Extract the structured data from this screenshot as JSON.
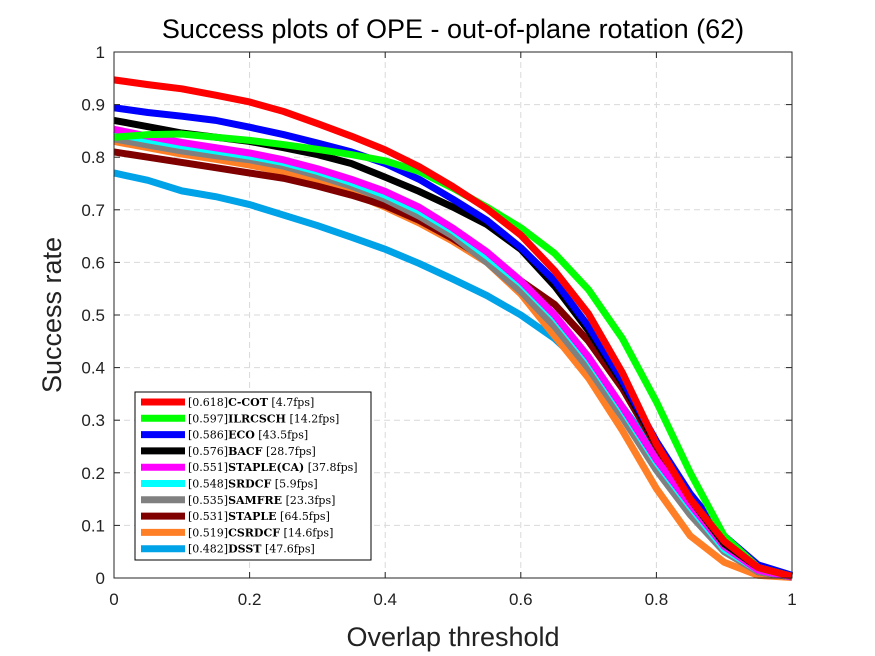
{
  "chart_data": {
    "type": "line",
    "title": "Success plots of OPE - out-of-plane rotation (62)",
    "xlabel": "Overlap threshold",
    "ylabel": "Success rate",
    "xlim": [
      0,
      1
    ],
    "ylim": [
      0,
      1
    ],
    "xticks": [
      "0",
      "0.2",
      "0.4",
      "0.6",
      "0.8",
      "1"
    ],
    "yticks": [
      "0",
      "0.1",
      "0.2",
      "0.3",
      "0.4",
      "0.5",
      "0.6",
      "0.7",
      "0.8",
      "0.9",
      "1"
    ],
    "grid": true,
    "legend_position": "bottom-left",
    "x": [
      0,
      0.05,
      0.1,
      0.15,
      0.2,
      0.25,
      0.3,
      0.35,
      0.4,
      0.45,
      0.5,
      0.55,
      0.6,
      0.65,
      0.7,
      0.75,
      0.8,
      0.85,
      0.9,
      0.95,
      1
    ],
    "series": [
      {
        "name": "C-COT",
        "score": "[0.618]",
        "fps": "[4.7fps]",
        "color": "#ff0000",
        "values": [
          0.947,
          0.938,
          0.93,
          0.918,
          0.905,
          0.887,
          0.864,
          0.84,
          0.814,
          0.782,
          0.744,
          0.702,
          0.652,
          0.584,
          0.502,
          0.39,
          0.255,
          0.15,
          0.07,
          0.02,
          0.003
        ]
      },
      {
        "name": "ILRCSCH",
        "score": "[0.597]",
        "fps": "[14.2fps]",
        "color": "#00ff00",
        "values": [
          0.838,
          0.843,
          0.844,
          0.838,
          0.832,
          0.824,
          0.815,
          0.805,
          0.793,
          0.773,
          0.741,
          0.705,
          0.666,
          0.617,
          0.548,
          0.455,
          0.335,
          0.2,
          0.08,
          0.02,
          0.003
        ]
      },
      {
        "name": "ECO",
        "score": "[0.586]",
        "fps": "[43.5fps]",
        "color": "#0000ff",
        "values": [
          0.894,
          0.885,
          0.878,
          0.87,
          0.857,
          0.843,
          0.827,
          0.81,
          0.788,
          0.758,
          0.72,
          0.68,
          0.628,
          0.565,
          0.478,
          0.375,
          0.26,
          0.16,
          0.08,
          0.025,
          0.005
        ]
      },
      {
        "name": "BACF",
        "score": "[0.576]",
        "fps": "[28.7fps]",
        "color": "#000000",
        "values": [
          0.87,
          0.858,
          0.846,
          0.838,
          0.83,
          0.818,
          0.805,
          0.788,
          0.762,
          0.735,
          0.705,
          0.672,
          0.625,
          0.555,
          0.47,
          0.37,
          0.255,
          0.15,
          0.065,
          0.02,
          0.003
        ]
      },
      {
        "name": "STAPLE(CA)",
        "score": "[0.551]",
        "fps": "[37.8fps]",
        "color": "#ff00ff",
        "values": [
          0.853,
          0.84,
          0.828,
          0.818,
          0.808,
          0.795,
          0.778,
          0.758,
          0.735,
          0.705,
          0.665,
          0.62,
          0.565,
          0.5,
          0.42,
          0.325,
          0.225,
          0.14,
          0.06,
          0.015,
          0.002
        ]
      },
      {
        "name": "SRDCF",
        "score": "[0.548]",
        "fps": "[5.9fps]",
        "color": "#00ffff",
        "values": [
          0.845,
          0.833,
          0.822,
          0.812,
          0.802,
          0.79,
          0.773,
          0.752,
          0.728,
          0.698,
          0.66,
          0.612,
          0.56,
          0.495,
          0.415,
          0.32,
          0.22,
          0.135,
          0.055,
          0.015,
          0.002
        ]
      },
      {
        "name": "SAMFRE",
        "score": "[0.535]",
        "fps": "[23.3fps]",
        "color": "#808080",
        "values": [
          0.835,
          0.823,
          0.812,
          0.803,
          0.795,
          0.783,
          0.765,
          0.745,
          0.72,
          0.688,
          0.65,
          0.6,
          0.545,
          0.478,
          0.398,
          0.305,
          0.205,
          0.12,
          0.05,
          0.012,
          0.002
        ]
      },
      {
        "name": "STAPLE",
        "score": "[0.531]",
        "fps": "[64.5fps]",
        "color": "#800000",
        "values": [
          0.81,
          0.8,
          0.79,
          0.78,
          0.77,
          0.76,
          0.745,
          0.728,
          0.708,
          0.68,
          0.645,
          0.605,
          0.565,
          0.52,
          0.45,
          0.36,
          0.25,
          0.145,
          0.055,
          0.012,
          0.002
        ]
      },
      {
        "name": "CSRDCF",
        "score": "[0.519]",
        "fps": "[14.6fps]",
        "color": "#ff7f27",
        "values": [
          0.83,
          0.818,
          0.806,
          0.796,
          0.785,
          0.772,
          0.755,
          0.732,
          0.705,
          0.675,
          0.64,
          0.6,
          0.54,
          0.46,
          0.38,
          0.28,
          0.17,
          0.08,
          0.03,
          0.005,
          0.001
        ]
      },
      {
        "name": "DSST",
        "score": "[0.482]",
        "fps": "[47.6fps]",
        "color": "#00a2e8",
        "values": [
          0.77,
          0.756,
          0.736,
          0.725,
          0.71,
          0.69,
          0.67,
          0.648,
          0.625,
          0.598,
          0.568,
          0.537,
          0.5,
          0.455,
          0.395,
          0.325,
          0.24,
          0.15,
          0.07,
          0.02,
          0.002
        ]
      }
    ]
  }
}
